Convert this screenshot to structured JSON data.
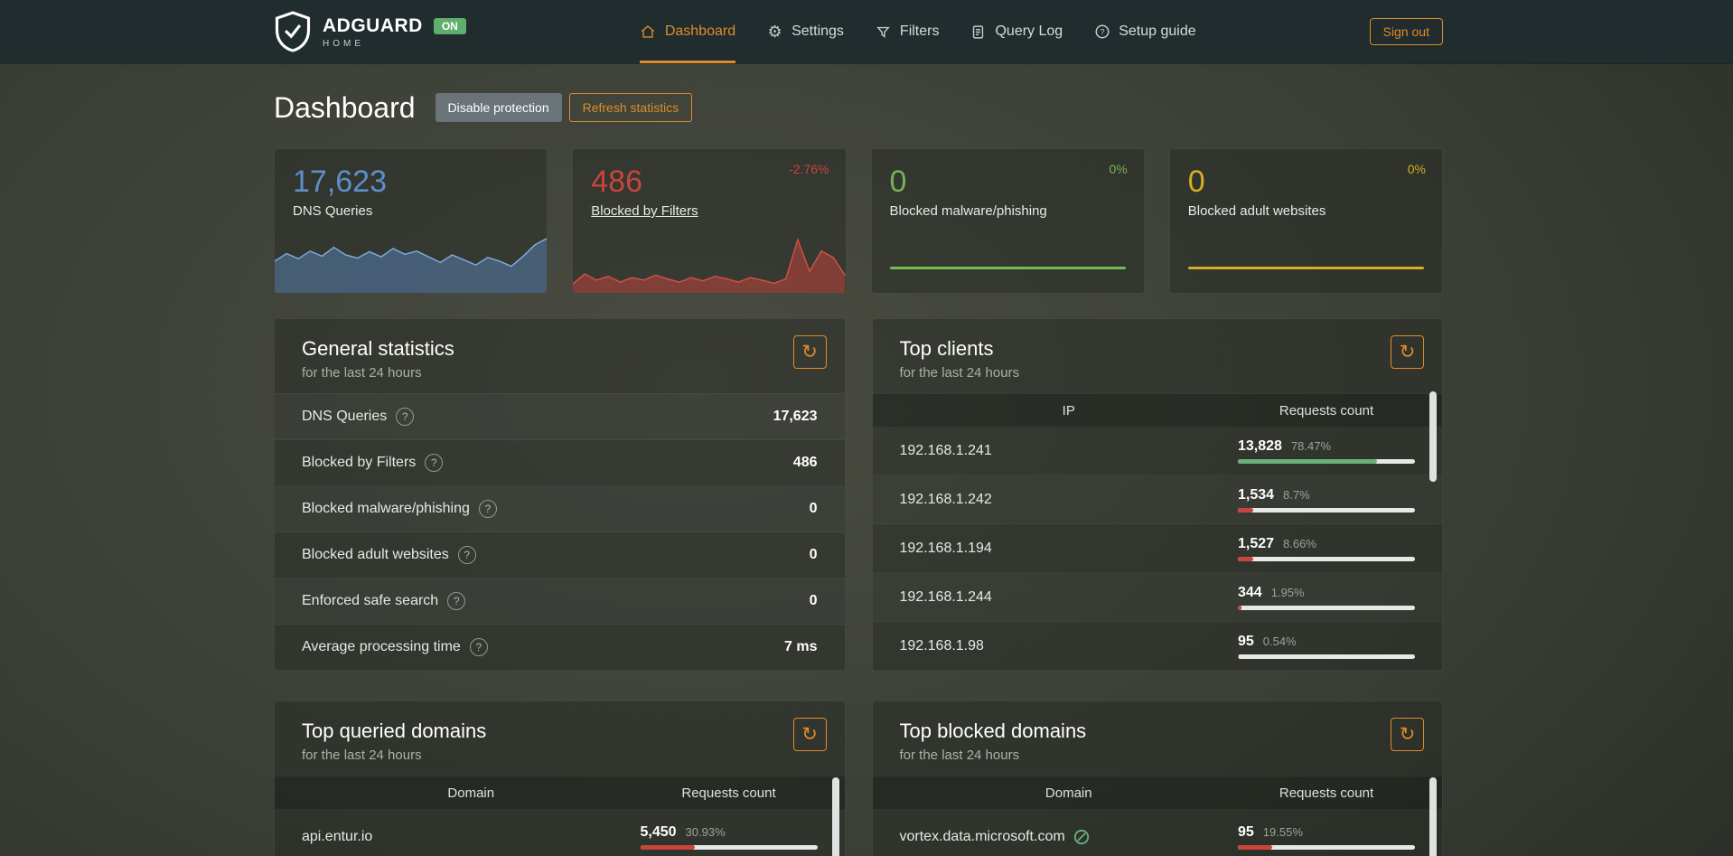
{
  "colors": {
    "orange": "#de8c2a",
    "green": "#67b279",
    "red": "#c9443c",
    "blue": "#5d8fca",
    "yellow": "#d4af1f",
    "track": "#e6e9e5"
  },
  "header": {
    "brand": {
      "name": "ADGUARD",
      "sub": "HOME",
      "status_badge": "ON"
    },
    "nav": [
      {
        "label": "Dashboard"
      },
      {
        "label": "Settings"
      },
      {
        "label": "Filters"
      },
      {
        "label": "Query Log"
      },
      {
        "label": "Setup guide"
      }
    ],
    "sign_out_label": "Sign out"
  },
  "page": {
    "title": "Dashboard",
    "disable_protection_label": "Disable protection",
    "refresh_statistics_label": "Refresh statistics"
  },
  "stat_cards": [
    {
      "value": "17,623",
      "label": "DNS Queries",
      "trend": "",
      "accent": "#5d8fca",
      "chart_fill": "rgba(93,143,202,0.45)",
      "chart_stroke": "#7da8dd",
      "sparkline": [
        50,
        62,
        54,
        66,
        58,
        72,
        60,
        55,
        65,
        57,
        70,
        61,
        66,
        57,
        48,
        60,
        52,
        44,
        56,
        50,
        42,
        58,
        76,
        86
      ]
    },
    {
      "value": "486",
      "label": "Blocked by Filters",
      "trend": "-2.76%",
      "accent": "#c9443c",
      "chart_fill": "rgba(201,68,60,0.5)",
      "chart_stroke": "#cf5048",
      "sparkline": [
        14,
        30,
        20,
        26,
        17,
        24,
        20,
        28,
        22,
        17,
        24,
        19,
        26,
        22,
        17,
        24,
        20,
        15,
        22,
        84,
        34,
        66,
        56,
        28
      ]
    },
    {
      "value": "0",
      "label": "Blocked malware/phishing",
      "trend": "0%",
      "accent": "#77b055",
      "line_color": "#6fbf4a"
    },
    {
      "value": "0",
      "label": "Blocked adult websites",
      "trend": "0%",
      "accent": "#d4af1f",
      "line_color": "#d4af1f"
    }
  ],
  "general_stats": {
    "title": "General statistics",
    "subtitle": "for the last 24 hours",
    "rows": [
      {
        "label": "DNS Queries",
        "value": "17,623"
      },
      {
        "label": "Blocked by Filters",
        "value": "486"
      },
      {
        "label": "Blocked malware/phishing",
        "value": "0"
      },
      {
        "label": "Blocked adult websites",
        "value": "0"
      },
      {
        "label": "Enforced safe search",
        "value": "0"
      },
      {
        "label": "Average processing time",
        "value": "7 ms"
      }
    ]
  },
  "top_clients": {
    "title": "Top clients",
    "subtitle": "for the last 24 hours",
    "columns": {
      "ip": "IP",
      "count": "Requests count"
    },
    "rows": [
      {
        "ip": "192.168.1.241",
        "count": "13,828",
        "percent": "78.47%",
        "bar": 78.47,
        "color": "green"
      },
      {
        "ip": "192.168.1.242",
        "count": "1,534",
        "percent": "8.7%",
        "bar": 8.7,
        "color": "red"
      },
      {
        "ip": "192.168.1.194",
        "count": "1,527",
        "percent": "8.66%",
        "bar": 8.66,
        "color": "red"
      },
      {
        "ip": "192.168.1.244",
        "count": "344",
        "percent": "1.95%",
        "bar": 1.95,
        "color": "red"
      },
      {
        "ip": "192.168.1.98",
        "count": "95",
        "percent": "0.54%",
        "bar": 0.54,
        "color": "red"
      }
    ]
  },
  "top_queried_domains": {
    "title": "Top queried domains",
    "subtitle": "for the last 24 hours",
    "columns": {
      "domain": "Domain",
      "count": "Requests count"
    },
    "rows": [
      {
        "domain": "api.entur.io",
        "count": "5,450",
        "percent": "30.93%",
        "bar": 30.93,
        "color": "red"
      }
    ]
  },
  "top_blocked_domains": {
    "title": "Top blocked domains",
    "subtitle": "for the last 24 hours",
    "columns": {
      "domain": "Domain",
      "count": "Requests count"
    },
    "rows": [
      {
        "domain": "vortex.data.microsoft.com",
        "count": "95",
        "percent": "19.55%",
        "bar": 19.55,
        "color": "red",
        "has_blocked_icon": true
      }
    ]
  }
}
